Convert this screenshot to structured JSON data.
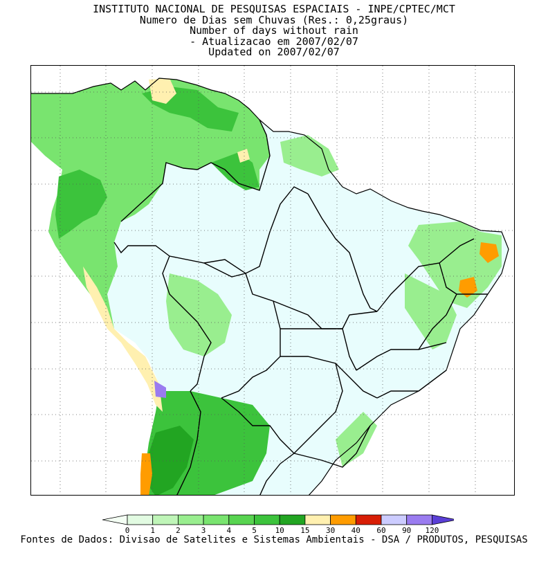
{
  "header": {
    "lines": [
      "INSTITUTO NACIONAL DE PESQUISAS ESPACIAIS - INPE/CPTEC/MCT",
      "Numero de Dias sem Chuvas (Res.: 0,25graus)",
      "Number of days without rain",
      "- Atualizacao em 2007/02/07",
      "Updated on 2007/02/07"
    ]
  },
  "legend": {
    "ticks": [
      "0",
      "1",
      "2",
      "3",
      "4",
      "5",
      "10",
      "15",
      "30",
      "40",
      "60",
      "90",
      "120"
    ],
    "colors": {
      "lt0": "#f4fff4",
      "c0_1": "#e2fbe2",
      "c1_2": "#bff5b8",
      "c2_3": "#99ee8f",
      "c3_4": "#79e46f",
      "c4_5": "#58d450",
      "c5_10": "#3cc33c",
      "c10_15": "#22a522",
      "c15_30": "#fff0b0",
      "c30_40": "#ff9c00",
      "c40_60": "#d81e05",
      "c60_90": "#ccccff",
      "c90_120": "#9a7cf0",
      "gt120": "#5a3fd6"
    }
  },
  "map": {
    "ocean_color": "#ffffff",
    "dry_light": "#e8fdfd",
    "border_color": "#000000"
  },
  "footer": {
    "source": "Fontes de Dados: Divisao de Satelites e Sistemas Ambientais - DSA / PRODUTOS, PESQUISAS"
  }
}
